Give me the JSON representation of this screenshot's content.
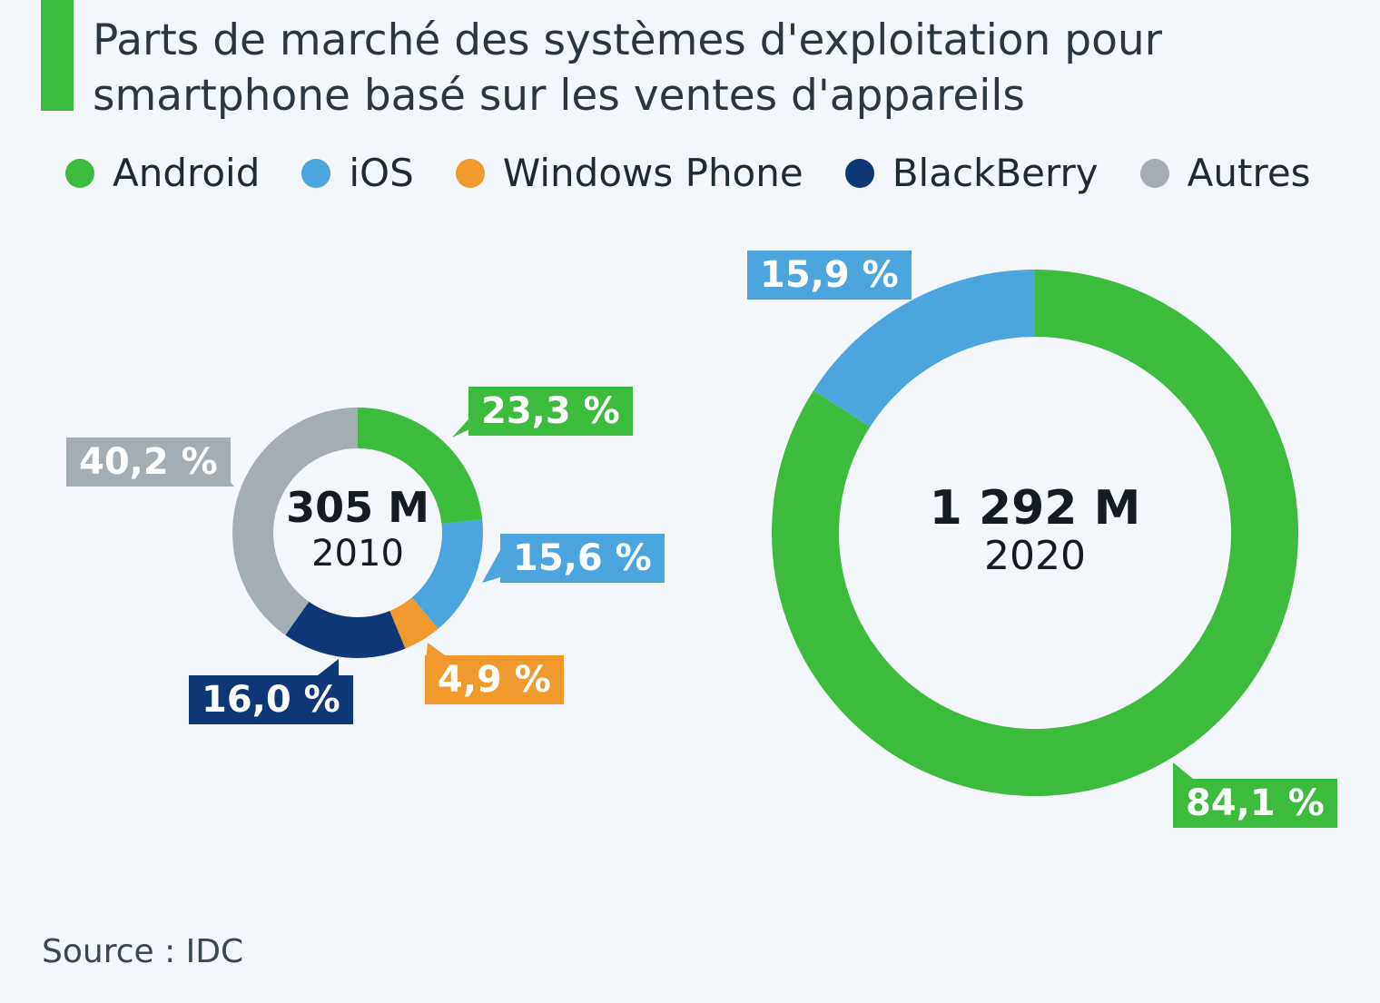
{
  "title": "Parts de marché des systèmes d'exploitation pour smartphone basé sur les ventes d'appareils",
  "legend": [
    {
      "name": "Android",
      "color": "#3dbb3d"
    },
    {
      "name": "iOS",
      "color": "#4ca5dd"
    },
    {
      "name": "Windows Phone",
      "color": "#f09a2e"
    },
    {
      "name": "BlackBerry",
      "color": "#0d3777"
    },
    {
      "name": "Autres",
      "color": "#a4acb4"
    }
  ],
  "chart_data": [
    {
      "type": "pie",
      "variant": "donut",
      "total_label": "305 M",
      "year": "2010",
      "slices": [
        {
          "name": "Android",
          "value": 23.3,
          "label": "23,3 %",
          "color": "#3dbb3d"
        },
        {
          "name": "iOS",
          "value": 15.6,
          "label": "15,6 %",
          "color": "#4ca5dd"
        },
        {
          "name": "Windows Phone",
          "value": 4.9,
          "label": "4,9 %",
          "color": "#f09a2e"
        },
        {
          "name": "BlackBerry",
          "value": 16.0,
          "label": "16,0 %",
          "color": "#0d3777"
        },
        {
          "name": "Autres",
          "value": 40.2,
          "label": "40,2 %",
          "color": "#a4acb4"
        }
      ]
    },
    {
      "type": "pie",
      "variant": "donut",
      "total_label": "1 292 M",
      "year": "2020",
      "slices": [
        {
          "name": "Android",
          "value": 84.1,
          "label": "84,1 %",
          "color": "#3dbb3d"
        },
        {
          "name": "iOS",
          "value": 15.9,
          "label": "15,9 %",
          "color": "#4ca5dd"
        }
      ]
    }
  ],
  "source": "Source : IDC"
}
